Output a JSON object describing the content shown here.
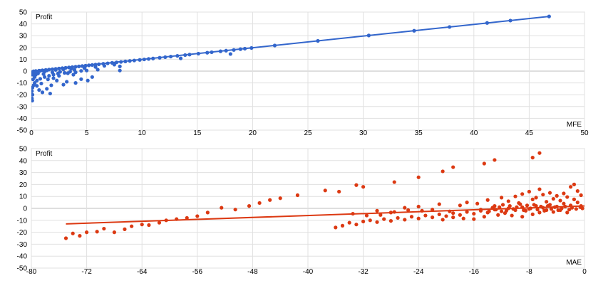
{
  "chart_data": [
    {
      "type": "scatter",
      "ylabel": "Profit",
      "xlabel": "MFE",
      "xlim": [
        0,
        50
      ],
      "ylim": [
        -50,
        50
      ],
      "x_ticks": [
        0,
        5,
        10,
        15,
        20,
        25,
        30,
        35,
        40,
        45,
        50
      ],
      "y_ticks": [
        -50,
        -40,
        -30,
        -20,
        -10,
        0,
        10,
        20,
        30,
        40,
        50
      ],
      "grid": true,
      "color": "#3366cc",
      "trendline": {
        "from": [
          0,
          0
        ],
        "to": [
          46.8,
          46.3
        ]
      },
      "points": [
        [
          46.8,
          46.3
        ],
        [
          43.3,
          42.8
        ],
        [
          41.2,
          40.8
        ],
        [
          37.8,
          37.4
        ],
        [
          34.6,
          34.2
        ],
        [
          30.5,
          30.2
        ],
        [
          25.9,
          25.6
        ],
        [
          22.0,
          21.7
        ],
        [
          19.9,
          19.6
        ],
        [
          19.3,
          19.0
        ],
        [
          18.9,
          18.6
        ],
        [
          18.3,
          17.9
        ],
        [
          17.6,
          17.3
        ],
        [
          17.1,
          16.8
        ],
        [
          16.3,
          16.0
        ],
        [
          15.9,
          15.6
        ],
        [
          15.1,
          14.8
        ],
        [
          14.3,
          14.0
        ],
        [
          13.9,
          13.6
        ],
        [
          13.2,
          12.9
        ],
        [
          12.6,
          12.3
        ],
        [
          12.1,
          11.8
        ],
        [
          11.6,
          11.3
        ],
        [
          11.0,
          10.7
        ],
        [
          10.6,
          10.3
        ],
        [
          10.2,
          9.9
        ],
        [
          9.8,
          9.5
        ],
        [
          9.3,
          9.0
        ],
        [
          8.9,
          8.6
        ],
        [
          8.5,
          8.2
        ],
        [
          8.1,
          7.8
        ],
        [
          7.7,
          7.4
        ],
        [
          7.3,
          7.0
        ],
        [
          6.9,
          6.6
        ],
        [
          6.5,
          6.2
        ],
        [
          6.1,
          5.8
        ],
        [
          5.8,
          5.5
        ],
        [
          5.5,
          5.2
        ],
        [
          5.2,
          4.9
        ],
        [
          4.9,
          4.6
        ],
        [
          4.6,
          4.3
        ],
        [
          4.3,
          4.0
        ],
        [
          4.0,
          3.7
        ],
        [
          3.7,
          3.4
        ],
        [
          3.4,
          3.1
        ],
        [
          3.1,
          2.8
        ],
        [
          2.8,
          2.5
        ],
        [
          2.5,
          2.2
        ],
        [
          2.2,
          1.9
        ],
        [
          1.9,
          1.6
        ],
        [
          1.6,
          1.3
        ],
        [
          1.3,
          1.0
        ],
        [
          1.0,
          0.7
        ],
        [
          0.7,
          0.4
        ],
        [
          0.4,
          0.1
        ],
        [
          0.2,
          -0.1
        ],
        [
          18.0,
          14.5
        ],
        [
          13.5,
          10.8
        ],
        [
          8.0,
          4.0
        ],
        [
          8.0,
          0.5
        ],
        [
          6.0,
          1.2
        ],
        [
          5.0,
          0.5
        ],
        [
          4.0,
          -1.0
        ],
        [
          4.5,
          0.2
        ],
        [
          3.5,
          -0.5
        ],
        [
          3.0,
          -1.5
        ],
        [
          2.6,
          -0.6
        ],
        [
          2.0,
          -3.0
        ],
        [
          1.6,
          -4.0
        ],
        [
          1.2,
          -5.0
        ],
        [
          0.8,
          -6.5
        ],
        [
          0.5,
          -8.0
        ],
        [
          0.3,
          -10.0
        ],
        [
          0.2,
          -12.0
        ],
        [
          0.1,
          -14.0
        ],
        [
          0.05,
          -17.0
        ],
        [
          0.1,
          -20.0
        ],
        [
          0.05,
          -23.0
        ],
        [
          0.08,
          -25.0
        ],
        [
          5.5,
          -5.0
        ],
        [
          5.1,
          -8.0
        ],
        [
          4.5,
          -6.8
        ],
        [
          4.0,
          -10.0
        ],
        [
          3.2,
          -9.0
        ],
        [
          2.9,
          -11.5
        ],
        [
          2.3,
          -8.0
        ],
        [
          1.8,
          -12.0
        ],
        [
          1.4,
          -15.0
        ],
        [
          1.0,
          -18.0
        ],
        [
          1.7,
          -19.0
        ],
        [
          0.7,
          -16.0
        ],
        [
          0.5,
          -12.5
        ],
        [
          2.5,
          -4.0
        ],
        [
          1.5,
          -7.0
        ],
        [
          3.8,
          -3.0
        ],
        [
          2.0,
          -6.0
        ],
        [
          0.9,
          -10.5
        ],
        [
          0.4,
          -3.0
        ],
        [
          0.6,
          -2.0
        ],
        [
          0.3,
          -5.0
        ],
        [
          0.15,
          -7.0
        ],
        [
          1.1,
          -2.5
        ],
        [
          2.4,
          -2.0
        ],
        [
          3.3,
          -1.8
        ],
        [
          0.8,
          0.2
        ],
        [
          1.4,
          0.6
        ],
        [
          2.2,
          1.0
        ],
        [
          2.9,
          1.5
        ],
        [
          3.6,
          2.0
        ],
        [
          0.1,
          -1.0
        ],
        [
          0.2,
          -2.0
        ],
        [
          0.1,
          -3.0
        ],
        [
          0.3,
          -0.5
        ],
        [
          0.6,
          -0.8
        ],
        [
          1.9,
          -1.0
        ],
        [
          4.8,
          2.5
        ],
        [
          5.8,
          3.5
        ],
        [
          6.6,
          4.5
        ],
        [
          7.5,
          5.5
        ],
        [
          3.9,
          1.0
        ],
        [
          1.2,
          -0.3
        ]
      ]
    },
    {
      "type": "scatter",
      "ylabel": "Profit",
      "xlabel": "MAE",
      "xlim": [
        -80,
        0
      ],
      "ylim": [
        -50,
        50
      ],
      "x_ticks": [
        -80,
        -72,
        -64,
        -56,
        -48,
        -40,
        -32,
        -24,
        -16,
        -8,
        0
      ],
      "y_ticks": [
        -50,
        -40,
        -30,
        -20,
        -10,
        0,
        10,
        20,
        30,
        40,
        50
      ],
      "grid": true,
      "color": "#dc3912",
      "trendline": {
        "from": [
          -75,
          -13
        ],
        "to": [
          0,
          2
        ]
      },
      "points": [
        [
          -75.0,
          -25.0
        ],
        [
          -74.0,
          -21.0
        ],
        [
          -73.0,
          -23.0
        ],
        [
          -72.0,
          -20.0
        ],
        [
          -70.5,
          -19.5
        ],
        [
          -69.5,
          -17.0
        ],
        [
          -68.0,
          -20.0
        ],
        [
          -66.5,
          -17.5
        ],
        [
          -65.5,
          -15.0
        ],
        [
          -64.0,
          -13.5
        ],
        [
          -63.0,
          -14.0
        ],
        [
          -61.5,
          -12.0
        ],
        [
          -60.5,
          -10.0
        ],
        [
          -59.0,
          -9.0
        ],
        [
          -57.5,
          -8.0
        ],
        [
          -56.0,
          -6.5
        ],
        [
          -54.5,
          -3.5
        ],
        [
          -52.5,
          0.5
        ],
        [
          -50.5,
          -1.0
        ],
        [
          -48.5,
          2.0
        ],
        [
          -47.0,
          4.5
        ],
        [
          -45.5,
          7.0
        ],
        [
          -44.0,
          8.5
        ],
        [
          -41.5,
          11.0
        ],
        [
          -37.5,
          15.0
        ],
        [
          -35.5,
          14.0
        ],
        [
          -33.0,
          19.5
        ],
        [
          -32.0,
          18.0
        ],
        [
          -27.5,
          22.0
        ],
        [
          -24.0,
          26.0
        ],
        [
          -20.5,
          31.0
        ],
        [
          -19.0,
          34.5
        ],
        [
          -14.5,
          37.5
        ],
        [
          -13.0,
          40.5
        ],
        [
          -7.5,
          42.5
        ],
        [
          -6.5,
          46.3
        ],
        [
          -36.0,
          -16.0
        ],
        [
          -35.0,
          -14.5
        ],
        [
          -34.0,
          -12.0
        ],
        [
          -33.0,
          -13.5
        ],
        [
          -32.0,
          -11.0
        ],
        [
          -31.0,
          -10.0
        ],
        [
          -30.0,
          -11.5
        ],
        [
          -29.0,
          -9.0
        ],
        [
          -28.0,
          -10.5
        ],
        [
          -27.0,
          -8.0
        ],
        [
          -26.0,
          -9.5
        ],
        [
          -25.0,
          -7.0
        ],
        [
          -24.0,
          -8.5
        ],
        [
          -23.0,
          -6.0
        ],
        [
          -22.0,
          -7.5
        ],
        [
          -21.0,
          -5.0
        ],
        [
          -20.0,
          -6.5
        ],
        [
          -19.0,
          -4.0
        ],
        [
          -18.0,
          -5.5
        ],
        [
          -17.0,
          -3.0
        ],
        [
          -16.0,
          -4.5
        ],
        [
          -15.0,
          -2.0
        ],
        [
          -14.0,
          -3.5
        ],
        [
          -13.0,
          -1.0
        ],
        [
          -12.0,
          -2.5
        ],
        [
          -11.0,
          0.0
        ],
        [
          -10.0,
          -1.5
        ],
        [
          -9.0,
          1.0
        ],
        [
          -8.0,
          -0.5
        ],
        [
          -7.0,
          2.0
        ],
        [
          -6.0,
          0.5
        ],
        [
          -5.0,
          3.0
        ],
        [
          -4.0,
          1.5
        ],
        [
          -3.0,
          4.0
        ],
        [
          -2.0,
          2.5
        ],
        [
          -1.0,
          5.0
        ],
        [
          -0.5,
          2.0
        ],
        [
          -30.0,
          -2.0
        ],
        [
          -28.0,
          -3.5
        ],
        [
          -26.0,
          0.5
        ],
        [
          -24.0,
          1.5
        ],
        [
          -22.0,
          -1.0
        ],
        [
          -21.0,
          3.5
        ],
        [
          -19.5,
          -2.5
        ],
        [
          -18.0,
          2.5
        ],
        [
          -17.0,
          5.0
        ],
        [
          -16.0,
          -9.0
        ],
        [
          -15.5,
          4.0
        ],
        [
          -15.0,
          -1.0
        ],
        [
          -14.0,
          7.0
        ],
        [
          -13.0,
          2.0
        ],
        [
          -12.0,
          9.0
        ],
        [
          -11.5,
          -4.0
        ],
        [
          -11.0,
          6.0
        ],
        [
          -10.0,
          10.0
        ],
        [
          -9.5,
          4.5
        ],
        [
          -9.0,
          12.0
        ],
        [
          -8.5,
          -2.0
        ],
        [
          -8.0,
          14.0
        ],
        [
          -7.5,
          7.5
        ],
        [
          -7.0,
          9.0
        ],
        [
          -6.5,
          16.0
        ],
        [
          -6.0,
          11.5
        ],
        [
          -5.5,
          5.5
        ],
        [
          -5.0,
          13.0
        ],
        [
          -4.5,
          8.0
        ],
        [
          -4.0,
          10.5
        ],
        [
          -3.5,
          6.5
        ],
        [
          -3.0,
          12.5
        ],
        [
          -2.5,
          9.5
        ],
        [
          -2.0,
          18.0
        ],
        [
          -1.5,
          7.5
        ],
        [
          -1.0,
          14.5
        ],
        [
          -0.5,
          11.0
        ],
        [
          -1.5,
          20.0
        ],
        [
          -2.5,
          -3.5
        ],
        [
          -3.5,
          -1.5
        ],
        [
          -4.5,
          -3.0
        ],
        [
          -5.5,
          -1.5
        ],
        [
          -6.5,
          -3.5
        ],
        [
          -7.5,
          -5.0
        ],
        [
          -9.0,
          -7.0
        ],
        [
          -10.5,
          -6.0
        ],
        [
          -12.5,
          -5.5
        ],
        [
          -14.5,
          -7.0
        ],
        [
          -17.5,
          -8.5
        ],
        [
          -19.0,
          -7.5
        ],
        [
          -20.5,
          -9.5
        ],
        [
          -23.5,
          -2.0
        ],
        [
          -25.5,
          -1.5
        ],
        [
          -27.5,
          -3.0
        ],
        [
          -29.5,
          -5.5
        ],
        [
          -31.5,
          -6.0
        ],
        [
          -33.5,
          -4.5
        ],
        [
          -0.3,
          0.0
        ],
        [
          -0.6,
          1.0
        ],
        [
          -1.2,
          -0.5
        ],
        [
          -1.8,
          0.5
        ],
        [
          -2.2,
          -1.0
        ],
        [
          -2.8,
          1.5
        ],
        [
          -3.3,
          0.0
        ],
        [
          -3.8,
          -1.5
        ],
        [
          -4.3,
          1.0
        ],
        [
          -4.8,
          -0.5
        ],
        [
          -5.3,
          2.0
        ],
        [
          -5.8,
          -2.0
        ],
        [
          -6.3,
          1.5
        ],
        [
          -6.8,
          -1.0
        ],
        [
          -7.3,
          3.0
        ],
        [
          -7.8,
          0.0
        ],
        [
          -8.3,
          2.5
        ],
        [
          -8.8,
          -1.5
        ],
        [
          -9.3,
          3.5
        ],
        [
          -9.8,
          1.0
        ],
        [
          -10.3,
          -0.5
        ],
        [
          -10.8,
          2.0
        ],
        [
          -11.3,
          -2.0
        ],
        [
          -11.8,
          3.0
        ],
        [
          -12.3,
          1.0
        ],
        [
          -12.8,
          -1.0
        ],
        [
          -13.3,
          0.5
        ],
        [
          -13.8,
          -2.5
        ]
      ]
    }
  ]
}
